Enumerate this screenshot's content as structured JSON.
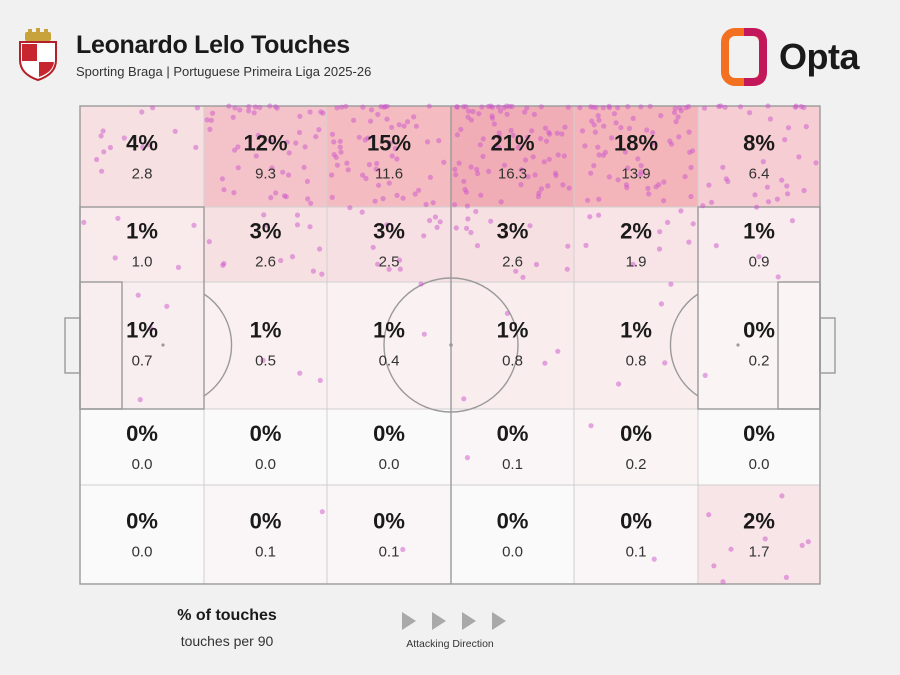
{
  "header": {
    "title": "Leonardo Lelo Touches",
    "subtitle": "Sporting Braga | Portuguese Primeira Liga 2025-26",
    "brand": "Opta"
  },
  "legend": {
    "primary": "% of touches",
    "secondary": "touches per 90",
    "direction": "Attacking Direction"
  },
  "colors": {
    "background": "#f2f1f2",
    "heat": "#e8606f",
    "dots": "#cc55cc",
    "lines": "#9a9a9a",
    "brand_orange": "#f37021",
    "brand_pink": "#c2185b"
  },
  "chart_data": {
    "type": "heatmap",
    "rows": 5,
    "cols": 6,
    "percent_labels": [
      [
        "4%",
        "12%",
        "15%",
        "21%",
        "18%",
        "8%"
      ],
      [
        "1%",
        "3%",
        "3%",
        "3%",
        "2%",
        "1%"
      ],
      [
        "1%",
        "1%",
        "1%",
        "1%",
        "1%",
        "0%"
      ],
      [
        "0%",
        "0%",
        "0%",
        "0%",
        "0%",
        "0%"
      ],
      [
        "0%",
        "0%",
        "0%",
        "0%",
        "0%",
        "2%"
      ]
    ],
    "per90_labels": [
      [
        "2.8",
        "9.3",
        "11.6",
        "16.3",
        "13.9",
        "6.4"
      ],
      [
        "1.0",
        "2.6",
        "2.5",
        "2.6",
        "1.9",
        "0.9"
      ],
      [
        "0.7",
        "0.5",
        "0.4",
        "0.8",
        "0.8",
        "0.2"
      ],
      [
        "0.0",
        "0.0",
        "0.0",
        "0.1",
        "0.2",
        "0.0"
      ],
      [
        "0.0",
        "0.1",
        "0.1",
        "0.0",
        "0.1",
        "1.7"
      ]
    ],
    "per90_values": [
      [
        2.8,
        9.3,
        11.6,
        16.3,
        13.9,
        6.4
      ],
      [
        1.0,
        2.6,
        2.5,
        2.6,
        1.9,
        0.9
      ],
      [
        0.7,
        0.5,
        0.4,
        0.8,
        0.8,
        0.2
      ],
      [
        0.0,
        0.0,
        0.0,
        0.1,
        0.2,
        0.0
      ],
      [
        0.0,
        0.1,
        0.1,
        0.0,
        0.1,
        1.7
      ]
    ]
  }
}
